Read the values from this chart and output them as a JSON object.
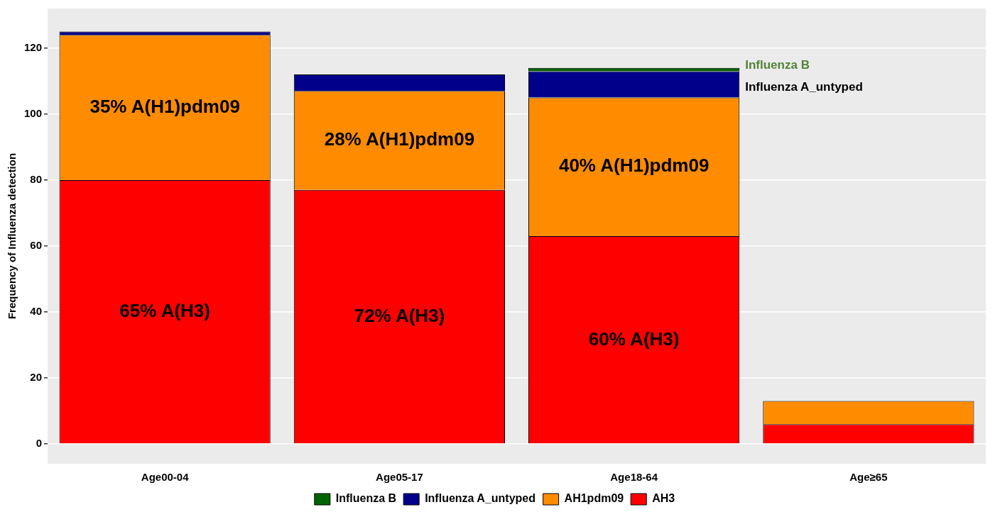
{
  "chart_data": {
    "type": "bar",
    "stacked": true,
    "ylabel": "Frequency of Influenza detection",
    "categories": [
      "Age00-04",
      "Age05-17",
      "Age18-64",
      "Age≥65"
    ],
    "series": [
      {
        "name": "AH3",
        "color": "#ff0000",
        "values": [
          80,
          77,
          63,
          6
        ]
      },
      {
        "name": "AH1pdm09",
        "color": "#ff8c00",
        "values": [
          44,
          30,
          42,
          7
        ]
      },
      {
        "name": "Influenza A_untyped",
        "color": "#00008b",
        "values": [
          1,
          5,
          8,
          null
        ]
      },
      {
        "name": "Influenza B",
        "color": "#006400",
        "values": [
          null,
          null,
          1,
          null
        ]
      }
    ],
    "ylim": [
      -6,
      132
    ],
    "yticks": [
      0,
      20,
      40,
      60,
      80,
      100,
      120
    ],
    "grid": "y",
    "legend": "bottom",
    "annotations": [
      "35% A(H1)pdm09",
      "65% A(H3)",
      "28% A(H1)pdm09",
      "72% A(H3)",
      "40% A(H1)pdm09",
      "60% A(H3)",
      "Influenza B",
      "Influenza A_untyped"
    ]
  }
}
